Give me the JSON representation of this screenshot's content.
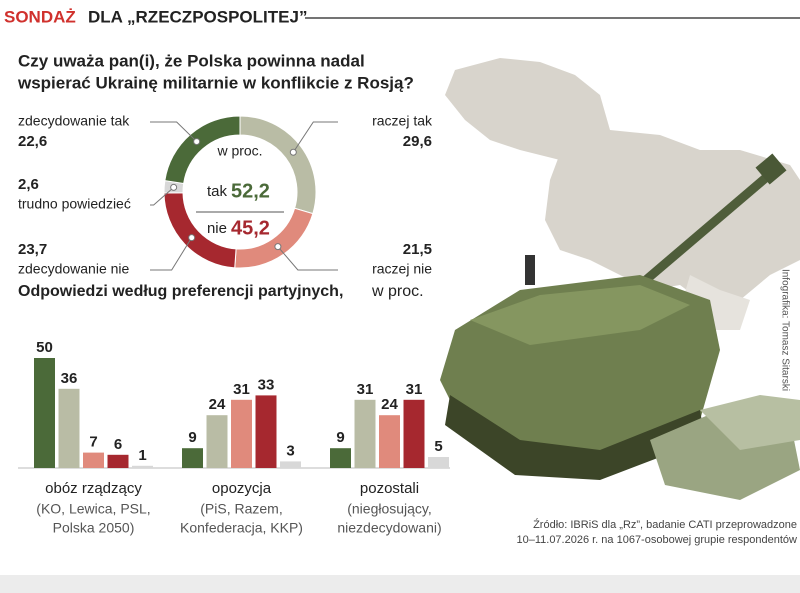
{
  "header": {
    "brand": "SONDAŻ",
    "title": "DLA „RZECZPOSPOLITEJ”"
  },
  "chart_data": [
    {
      "type": "pie",
      "title_lines": [
        "Czy uważa pan(i), że Polska powinna nadal",
        "wspierać Ukrainę militarnie w konflikcie z Rosją?"
      ],
      "unit": "w proc.",
      "categories": [
        "raczej tak",
        "raczej nie",
        "zdecydowanie nie",
        "trudno powiedzieć",
        "zdecydowanie tak"
      ],
      "values": [
        29.6,
        21.5,
        23.7,
        2.6,
        22.6
      ],
      "value_labels": [
        "29,6",
        "21,5",
        "23,7",
        "2,6",
        "22,6"
      ],
      "colors": [
        "#b9bca5",
        "#e08a7c",
        "#a6282f",
        "#d8d8d8",
        "#4b6a39"
      ],
      "totals": [
        {
          "label": "tak",
          "value": 52.2,
          "value_label": "52,2",
          "color": "#4b6a39"
        },
        {
          "label": "nie",
          "value": 45.2,
          "value_label": "45,2",
          "color": "#a6282f"
        }
      ]
    },
    {
      "type": "bar",
      "title": "Odpowiedzi według preferencji partyjnych,",
      "subtitle": "w proc.",
      "categories": [
        "obóz rządzący",
        "opozycja",
        "pozostali"
      ],
      "category_details": [
        [
          "(KO, Lewica, PSL,",
          "Polska 2050)"
        ],
        [
          "(PiS, Razem,",
          "Konfederacja, KKP)"
        ],
        [
          "(niegłosujący,",
          "niezdecydowani)"
        ]
      ],
      "series": [
        {
          "color": "#4b6a39",
          "values": [
            50,
            9,
            9
          ]
        },
        {
          "color": "#b9bca5",
          "values": [
            36,
            24,
            31
          ]
        },
        {
          "color": "#e08a7c",
          "values": [
            7,
            31,
            24
          ]
        },
        {
          "color": "#a6282f",
          "values": [
            6,
            33,
            31
          ]
        },
        {
          "color": "#d8d8d8",
          "values": [
            1,
            3,
            5
          ]
        }
      ]
    }
  ],
  "source_lines": [
    "Źródło: IBRiS dla „Rz”, badanie CATI przeprowadzone",
    "10–11.07.2026 r. na 1067-osobowej grupie respondentów"
  ],
  "credit": "Infografika: Tomasz Sitarski"
}
